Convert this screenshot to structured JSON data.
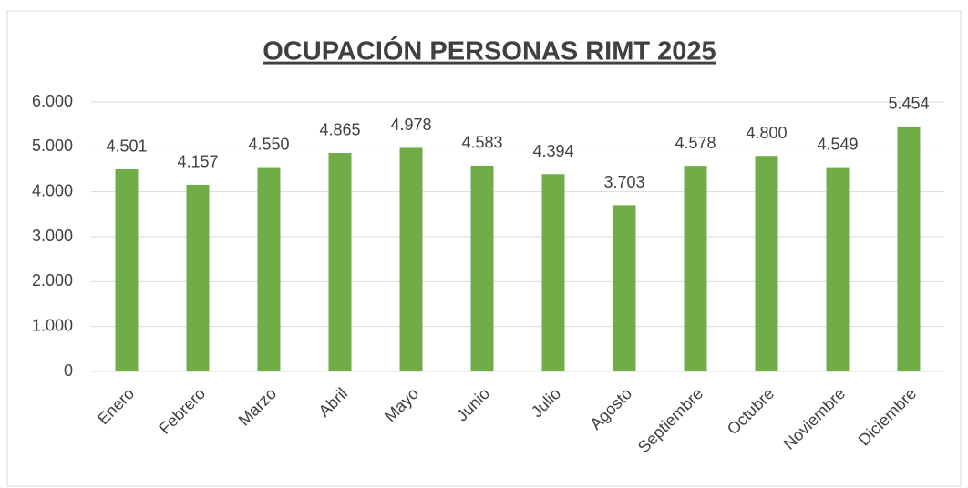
{
  "chart_data": {
    "type": "bar",
    "title": "OCUPACIÓN PERSONAS RIMT 2025",
    "categories": [
      "Enero",
      "Febrero",
      "Marzo",
      "Abril",
      "Mayo",
      "Junio",
      "Julio",
      "Agosto",
      "Septiembre",
      "Octubre",
      "Noviembre",
      "Diciembre"
    ],
    "values": [
      4501,
      4157,
      4550,
      4865,
      4978,
      4583,
      4394,
      3703,
      4578,
      4800,
      4549,
      5454
    ],
    "value_labels": [
      "4.501",
      "4.157",
      "4.550",
      "4.865",
      "4.978",
      "4.583",
      "4.394",
      "3.703",
      "4.578",
      "4.800",
      "4.549",
      "5.454"
    ],
    "color": "#70ad47",
    "ylim": [
      0,
      6000
    ],
    "yticks": [
      0,
      {
        "value": 1000,
        "label": "1.000"
      },
      {
        "value": 2000,
        "label": "2.000"
      },
      {
        "value": 3000,
        "label": "3.000"
      },
      {
        "value": 4000,
        "label": "4.000"
      },
      {
        "value": 5000,
        "label": "5.000"
      },
      {
        "value": 6000,
        "label": "6.000"
      }
    ],
    "grid": true
  }
}
